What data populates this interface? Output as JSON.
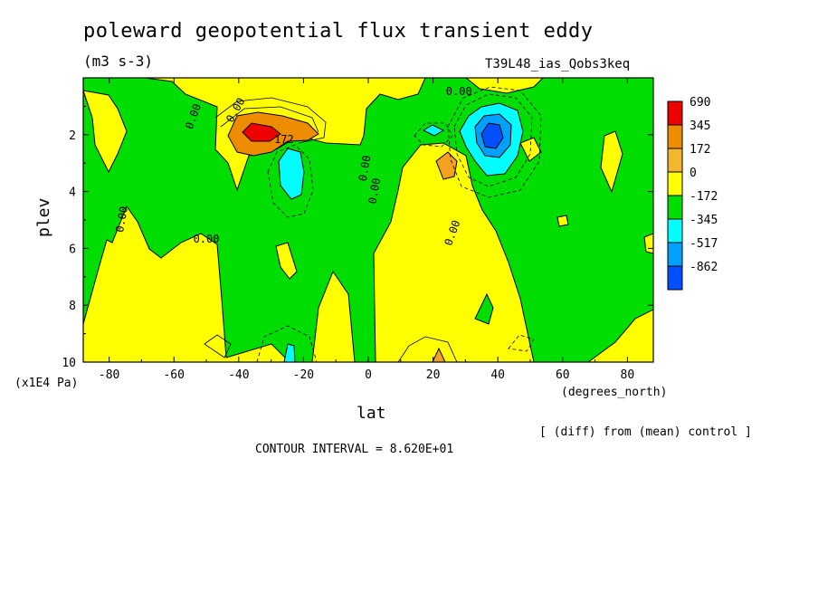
{
  "title": "poleward geopotential flux transient eddy",
  "units": "(m3 s-3)",
  "run_id": "T39L48_ias_Qobs3keq",
  "note_diff": "[ (diff) from (mean) control ]",
  "note_contour": "CONTOUR INTERVAL = 8.620E+01",
  "chart_data": {
    "type": "heatmap",
    "subtype": "filled contour",
    "title": "poleward geopotential flux transient eddy",
    "units": "(m3 s-3)",
    "xlabel": "lat",
    "x_unit": "(degrees_north)",
    "ylabel": "plev",
    "y_unit": "(x1E4 Pa)",
    "xlim": [
      -88,
      88
    ],
    "ylim": [
      10,
      0
    ],
    "y_inverted": true,
    "x_ticks": [
      -80,
      -60,
      -40,
      -20,
      0,
      20,
      40,
      60,
      80
    ],
    "y_ticks": [
      2,
      4,
      6,
      8,
      10
    ],
    "contour_interval": 86.2,
    "contour_labels": [
      "0.00",
      "0.00",
      "0.00",
      "0.00",
      "0.00",
      "0.00",
      "0.00",
      "0.00",
      "172"
    ],
    "legend": {
      "levels": [
        "690",
        "345",
        "172",
        "0",
        "-172",
        "-345",
        "-517",
        "-862"
      ],
      "colors": [
        "#ee0000",
        "#ee8c00",
        "#f4b62e",
        "#ffff00",
        "#00dd00",
        "#00ffff",
        "#00a0ff",
        "#0050ff"
      ],
      "placement": "right"
    },
    "features": [
      {
        "type": "max",
        "lat": -36,
        "plev": 2.0,
        "value": 690
      },
      {
        "type": "min",
        "lat": -25,
        "plev": 3.5,
        "value": -345
      },
      {
        "type": "min",
        "lat": 38,
        "plev": 2.0,
        "value": -862
      },
      {
        "type": "max",
        "lat": 25,
        "plev": 3.2,
        "value": 172
      }
    ]
  }
}
